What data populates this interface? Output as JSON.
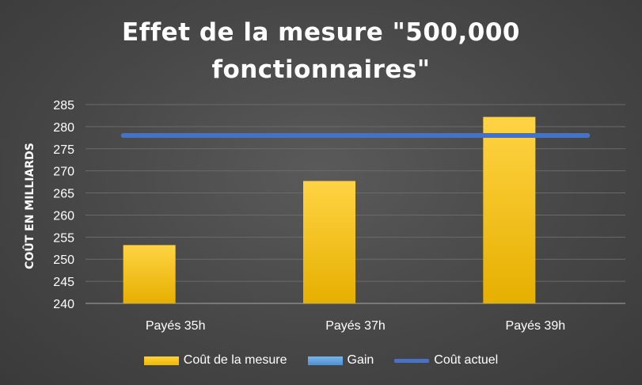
{
  "chart_data": {
    "type": "bar",
    "title_line1": "Effet de la mesure \"500,000",
    "title_line2": "fonctionnaires\"",
    "ylabel": "COÛT EN MILLIARDS",
    "xlabel": "",
    "categories": [
      "Payés 35h",
      "Payés 37h",
      "Payés 39h"
    ],
    "ylim": [
      240,
      285
    ],
    "yticks": [
      240,
      245,
      250,
      255,
      260,
      265,
      270,
      275,
      280,
      285
    ],
    "grid": true,
    "legend_position": "bottom",
    "series": [
      {
        "name": "Coût de la mesure",
        "kind": "bar",
        "color": "#ffc000",
        "values": [
          253.2,
          267.7,
          282.2
        ]
      },
      {
        "name": "Gain",
        "kind": "bar",
        "color": "#5b9bd5",
        "values": [
          0,
          0,
          0
        ]
      },
      {
        "name": "Coût actuel",
        "kind": "line",
        "color": "#4472c4",
        "values": [
          278,
          278,
          278
        ]
      }
    ]
  }
}
